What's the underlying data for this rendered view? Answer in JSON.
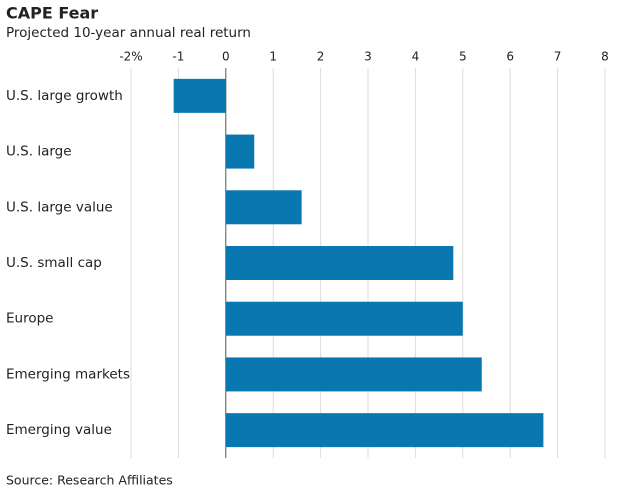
{
  "chart_data": {
    "type": "bar",
    "orientation": "horizontal",
    "title": "CAPE Fear",
    "subtitle": "Projected 10-year annual real return",
    "source": "Source: Research Affiliates",
    "categories": [
      "U.S. large growth",
      "U.S. large",
      "U.S. large value",
      "U.S. small cap",
      "Europe",
      "Emerging markets",
      "Emerging value"
    ],
    "values": [
      -1.1,
      0.6,
      1.6,
      4.8,
      5.0,
      5.4,
      6.7
    ],
    "color": "#0a78b0",
    "xlim": [
      -2,
      8
    ],
    "xticks": [
      {
        "value": -2,
        "label": "-2%"
      },
      -1,
      0,
      1,
      2,
      3,
      4,
      5,
      6,
      7,
      8
    ],
    "grid": true
  }
}
